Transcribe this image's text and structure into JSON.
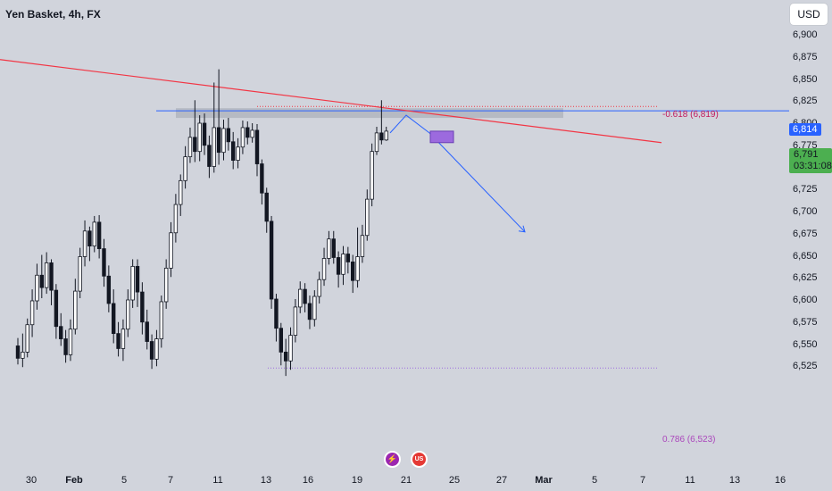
{
  "header": {
    "title": "Yen Basket, 4h, FX"
  },
  "currency_button": {
    "label": "USD"
  },
  "axis": {
    "y_ticks": [
      "6,900",
      "6,875",
      "6,850",
      "6,825",
      "6,800",
      "6,775",
      "6,750",
      "6,725",
      "6,700",
      "6,675",
      "6,650",
      "6,625",
      "6,600",
      "6,575",
      "6,550",
      "6,525"
    ],
    "x_ticks": [
      "30",
      "Feb",
      "5",
      "7",
      "11",
      "13",
      "16",
      "19",
      "21",
      "25",
      "27",
      "Mar",
      "5",
      "7",
      "11",
      "13",
      "16"
    ]
  },
  "price_tags": {
    "level": "6,814",
    "last_price": "6,791",
    "countdown": "03:31:08"
  },
  "fib": {
    "upper_label": "-0.618 (6,819)",
    "lower_label": "0.786 (6,523)"
  },
  "colors": {
    "background": "#d1d4dc",
    "candle_body": "#ffffff",
    "candle_outline": "#131722",
    "trendline": "#f23645",
    "horizontal_level": "#2962ff",
    "projection_arrow": "#2962ff",
    "resistance_zone": "#b2b5be",
    "target_box": "#9c6ade",
    "last_price_tag": "#4caf50",
    "upper_fib": "#f23645",
    "lower_fib": "#9c6ade"
  },
  "events": [
    {
      "name": "flash-icon",
      "color": "#9c27b0",
      "glyph": "⚡"
    },
    {
      "name": "us-flag-icon",
      "color": "#e53935",
      "glyph": "US"
    }
  ],
  "chart_data": {
    "type": "candlestick",
    "title": "Yen Basket, 4h, FX",
    "y_unit": "USD",
    "ylim": [
      6.512,
      6.92
    ],
    "x_range": [
      "Jan 29",
      "Mar 17"
    ],
    "grid": false,
    "annotations": {
      "horizontal_level": 6.814,
      "resistance_zone": [
        6.806,
        6.817
      ],
      "fib_upper": {
        "ratio": -0.618,
        "price": 6.819
      },
      "fib_lower": {
        "ratio": 0.786,
        "price": 6.523
      },
      "trendline_descending": [
        [
          "Jan 29",
          6.872
        ],
        [
          "Mar 8",
          6.778
        ]
      ],
      "projection_path": [
        [
          "Feb 20",
          6.789
        ],
        [
          "Feb 21",
          6.809
        ],
        [
          "Feb 22",
          6.789
        ],
        [
          "Feb 28",
          6.677
        ]
      ],
      "target_box": [
        6.778,
        6.791
      ]
    },
    "candles": [
      [
        6.548,
        6.534,
        6.557,
        6.527
      ],
      [
        6.534,
        6.541,
        6.562,
        6.524
      ],
      [
        6.541,
        6.572,
        6.579,
        6.535
      ],
      [
        6.572,
        6.599,
        6.612,
        6.558
      ],
      [
        6.599,
        6.628,
        6.641,
        6.589
      ],
      [
        6.628,
        6.614,
        6.651,
        6.602
      ],
      [
        6.614,
        6.642,
        6.654,
        6.607
      ],
      [
        6.642,
        6.611,
        6.646,
        6.594
      ],
      [
        6.611,
        6.57,
        6.618,
        6.556
      ],
      [
        6.57,
        6.556,
        6.585,
        6.548
      ],
      [
        6.556,
        6.538,
        6.566,
        6.529
      ],
      [
        6.538,
        6.567,
        6.578,
        6.531
      ],
      [
        6.567,
        6.61,
        6.624,
        6.561
      ],
      [
        6.61,
        6.649,
        6.659,
        6.602
      ],
      [
        6.649,
        6.678,
        6.69,
        6.638
      ],
      [
        6.678,
        6.661,
        6.683,
        6.644
      ],
      [
        6.661,
        6.688,
        6.695,
        6.654
      ],
      [
        6.688,
        6.658,
        6.696,
        6.647
      ],
      [
        6.658,
        6.627,
        6.669,
        6.615
      ],
      [
        6.627,
        6.596,
        6.639,
        6.586
      ],
      [
        6.596,
        6.562,
        6.612,
        6.551
      ],
      [
        6.562,
        6.545,
        6.575,
        6.536
      ],
      [
        6.545,
        6.567,
        6.578,
        6.531
      ],
      [
        6.567,
        6.6,
        6.612,
        6.558
      ],
      [
        6.6,
        6.638,
        6.646,
        6.591
      ],
      [
        6.638,
        6.609,
        6.646,
        6.592
      ],
      [
        6.609,
        6.575,
        6.62,
        6.561
      ],
      [
        6.575,
        6.553,
        6.589,
        6.544
      ],
      [
        6.553,
        6.533,
        6.561,
        6.522
      ],
      [
        6.533,
        6.556,
        6.566,
        6.525
      ],
      [
        6.556,
        6.598,
        6.605,
        6.546
      ],
      [
        6.598,
        6.636,
        6.646,
        6.59
      ],
      [
        6.636,
        6.676,
        6.688,
        6.626
      ],
      [
        6.676,
        6.708,
        6.72,
        6.665
      ],
      [
        6.708,
        6.735,
        6.742,
        6.695
      ],
      [
        6.735,
        6.762,
        6.774,
        6.726
      ],
      [
        6.762,
        6.784,
        6.795,
        6.755
      ],
      [
        6.784,
        6.768,
        6.826,
        6.756
      ],
      [
        6.768,
        6.8,
        6.809,
        6.757
      ],
      [
        6.8,
        6.775,
        6.811,
        6.764
      ],
      [
        6.775,
        6.751,
        6.786,
        6.738
      ],
      [
        6.751,
        6.795,
        6.846,
        6.744
      ],
      [
        6.795,
        6.767,
        6.861,
        6.753
      ],
      [
        6.767,
        6.794,
        6.804,
        6.758
      ],
      [
        6.794,
        6.779,
        6.806,
        6.769
      ],
      [
        6.779,
        6.758,
        6.79,
        6.748
      ],
      [
        6.758,
        6.773,
        6.783,
        6.749
      ],
      [
        6.773,
        6.795,
        6.803,
        6.765
      ],
      [
        6.795,
        6.784,
        6.802,
        6.776
      ],
      [
        6.784,
        6.792,
        6.8,
        6.778
      ],
      [
        6.792,
        6.754,
        6.799,
        6.74
      ],
      [
        6.754,
        6.721,
        6.759,
        6.708
      ],
      [
        6.721,
        6.689,
        6.727,
        6.676
      ],
      [
        6.689,
        6.601,
        6.695,
        6.59
      ],
      [
        6.601,
        6.568,
        6.607,
        6.553
      ],
      [
        6.568,
        6.541,
        6.574,
        6.526
      ],
      [
        6.541,
        6.531,
        6.556,
        6.514
      ],
      [
        6.531,
        6.56,
        6.569,
        6.521
      ],
      [
        6.56,
        6.592,
        6.601,
        6.552
      ],
      [
        6.592,
        6.612,
        6.621,
        6.585
      ],
      [
        6.612,
        6.596,
        6.619,
        6.586
      ],
      [
        6.596,
        6.578,
        6.605,
        6.567
      ],
      [
        6.578,
        6.604,
        6.611,
        6.57
      ],
      [
        6.604,
        6.623,
        6.632,
        6.596
      ],
      [
        6.623,
        6.647,
        6.659,
        6.616
      ],
      [
        6.647,
        6.669,
        6.678,
        6.64
      ],
      [
        6.669,
        6.648,
        6.678,
        6.641
      ],
      [
        6.648,
        6.629,
        6.655,
        6.614
      ],
      [
        6.629,
        6.652,
        6.661,
        6.617
      ],
      [
        6.652,
        6.643,
        6.66,
        6.63
      ],
      [
        6.643,
        6.622,
        6.651,
        6.608
      ],
      [
        6.622,
        6.649,
        6.682,
        6.614
      ],
      [
        6.649,
        6.673,
        6.685,
        6.642
      ],
      [
        6.673,
        6.714,
        6.725,
        6.667
      ],
      [
        6.714,
        6.768,
        6.777,
        6.706
      ],
      [
        6.768,
        6.789,
        6.796,
        6.764
      ],
      [
        6.789,
        6.781,
        6.826,
        6.776
      ],
      [
        6.781,
        6.791,
        6.796,
        6.78
      ]
    ]
  }
}
